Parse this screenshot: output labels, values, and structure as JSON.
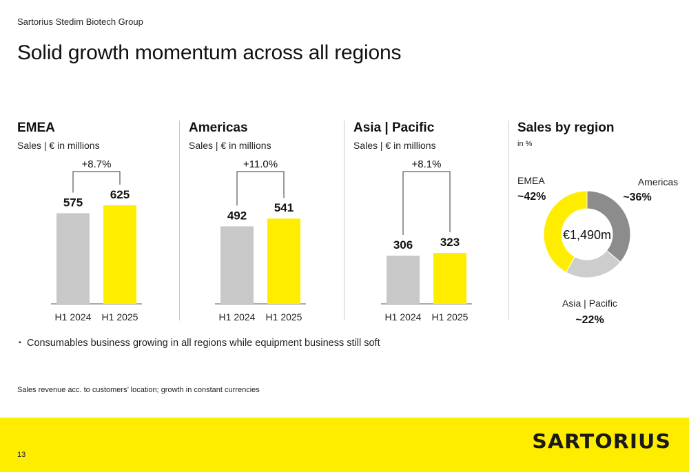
{
  "header": {
    "company": "Sartorius Stedim Biotech Group",
    "title": "Solid growth momentum across all regions"
  },
  "colors": {
    "accent": "#FFED00",
    "bar_prior": "#C8C8C8",
    "donut_grey": "#8C8C8C",
    "donut_light": "#CDCDCD"
  },
  "chart_data": [
    {
      "type": "bar",
      "title": "EMEA",
      "subtitle": "Sales | € in millions",
      "categories": [
        "H1 2024",
        "H1 2025"
      ],
      "values": [
        575,
        625
      ],
      "value_labels": [
        "575",
        "625"
      ],
      "growth_label": "+8.7%",
      "ylim": [
        0,
        625
      ]
    },
    {
      "type": "bar",
      "title": "Americas",
      "subtitle": "Sales | € in millions",
      "categories": [
        "H1 2024",
        "H1 2025"
      ],
      "values": [
        492,
        541
      ],
      "value_labels": [
        "492",
        "541"
      ],
      "growth_label": "+11.0%",
      "ylim": [
        0,
        625
      ]
    },
    {
      "type": "bar",
      "title": "Asia | Pacific",
      "subtitle": "Sales | € in millions",
      "categories": [
        "H1 2024",
        "H1 2025"
      ],
      "values": [
        306,
        323
      ],
      "value_labels": [
        "306",
        "323"
      ],
      "growth_label": "+8.1%",
      "ylim": [
        0,
        625
      ]
    },
    {
      "type": "pie",
      "title": "Sales by region",
      "subtitle": "in %",
      "center_label": "€1,490m",
      "slices": [
        {
          "name": "Americas",
          "value": 36,
          "label": "~36%"
        },
        {
          "name": "Asia | Pacific",
          "value": 22,
          "label": "~22%"
        },
        {
          "name": "EMEA",
          "value": 42,
          "label": "~42%"
        }
      ]
    }
  ],
  "bullet": "Consumables business growing in all regions while equipment business still soft",
  "footnote": "Sales revenue acc. to customers’ location; growth in constant currencies",
  "footer": {
    "page_number": "13",
    "logo_text": "SARTORIUS"
  }
}
